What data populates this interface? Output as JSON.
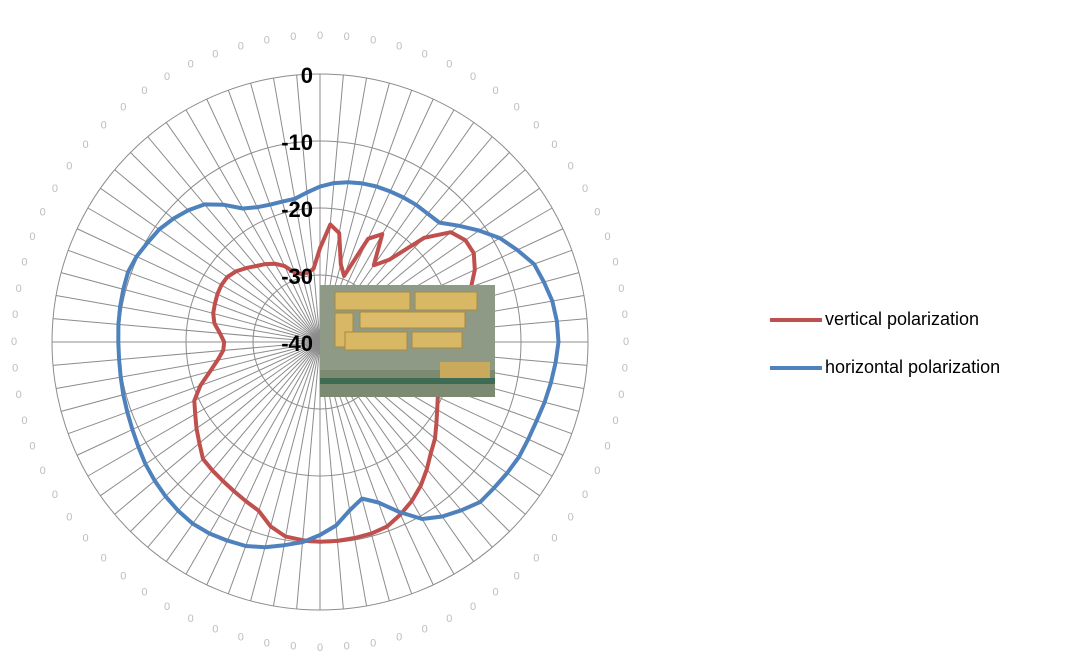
{
  "chart_data": {
    "type": "radar",
    "categories": [
      "0",
      "0",
      "0",
      "0",
      "0",
      "0",
      "0",
      "0",
      "0",
      "0",
      "0",
      "0",
      "0",
      "0",
      "0",
      "0",
      "0",
      "0",
      "0",
      "0",
      "0",
      "0",
      "0",
      "0",
      "0",
      "0",
      "0",
      "0",
      "0",
      "0",
      "0",
      "0",
      "0",
      "0",
      "0",
      "0",
      "0",
      "0",
      "0",
      "0",
      "0",
      "0",
      "0",
      "0",
      "0",
      "0",
      "0",
      "0",
      "0",
      "0",
      "0",
      "0",
      "0",
      "0",
      "0",
      "0",
      "0",
      "0",
      "0",
      "0",
      "0",
      "0",
      "0",
      "0",
      "0",
      "0",
      "0",
      "0",
      "0",
      "0",
      "0",
      "0"
    ],
    "series": [
      {
        "name": "vertical polarization",
        "color": "#c0504d",
        "values": [
          -26,
          -22.4,
          -23.5,
          -28,
          -29.5,
          -23,
          -21.4,
          -26,
          -24,
          -18,
          -14.5,
          -13.5,
          -13.5,
          -14.5,
          -16,
          -17.5,
          -18.7,
          -19.5,
          -20.5,
          -21,
          -21.3,
          -21.3,
          -21,
          -20.6,
          -19.8,
          -18.8,
          -17.6,
          -16.6,
          -15.2,
          -13.8,
          -12.6,
          -11.6,
          -10.7,
          -10.4,
          -10.3,
          -10.2,
          -10.2,
          -10.3,
          -10.5,
          -11.5,
          -13.2,
          -13.8,
          -14.3,
          -14.7,
          -15,
          -15.3,
          -16.5,
          -17.5,
          -18.5,
          -19.3,
          -21,
          -23,
          -24.5,
          -25.5,
          -25.7,
          -25,
          -24,
          -23.5,
          -23.3,
          -23.1,
          -23,
          -23.1,
          -23.6,
          -24.4,
          -25.2,
          -25.8,
          -26.5,
          -27.5,
          -29,
          -29.5,
          -29.5,
          -29
        ]
      },
      {
        "name": "horizontal polarization",
        "color": "#4f81bd",
        "values": [
          -16.8,
          -16.2,
          -15.8,
          -15.5,
          -15.3,
          -15.2,
          -15.1,
          -15,
          -15,
          -14.8,
          -13,
          -11,
          -9,
          -7.5,
          -6,
          -5.4,
          -4.8,
          -4.5,
          -4.4,
          -4.7,
          -5,
          -5.3,
          -5.6,
          -5.7,
          -5.7,
          -5.9,
          -6.1,
          -6.2,
          -7.2,
          -8.2,
          -9.5,
          -12,
          -14.5,
          -15.8,
          -14.5,
          -12.5,
          -11.2,
          -10,
          -9.2,
          -8.3,
          -7.6,
          -7.3,
          -7,
          -6.9,
          -7.1,
          -7.4,
          -7.8,
          -8.2,
          -8.7,
          -9.1,
          -9.4,
          -9.6,
          -9.8,
          -9.9,
          -9.9,
          -9.8,
          -9.7,
          -9.6,
          -9.5,
          -9.8,
          -10.3,
          -10.7,
          -11.4,
          -12.2,
          -13.2,
          -15,
          -17,
          -17.8,
          -18.2,
          -18.3,
          -18.3,
          -17.6
        ]
      }
    ],
    "ylim": [
      -40,
      0
    ],
    "yticks": [
      -40,
      -30,
      -20,
      -10,
      0
    ],
    "grid": true,
    "legend": "right"
  }
}
